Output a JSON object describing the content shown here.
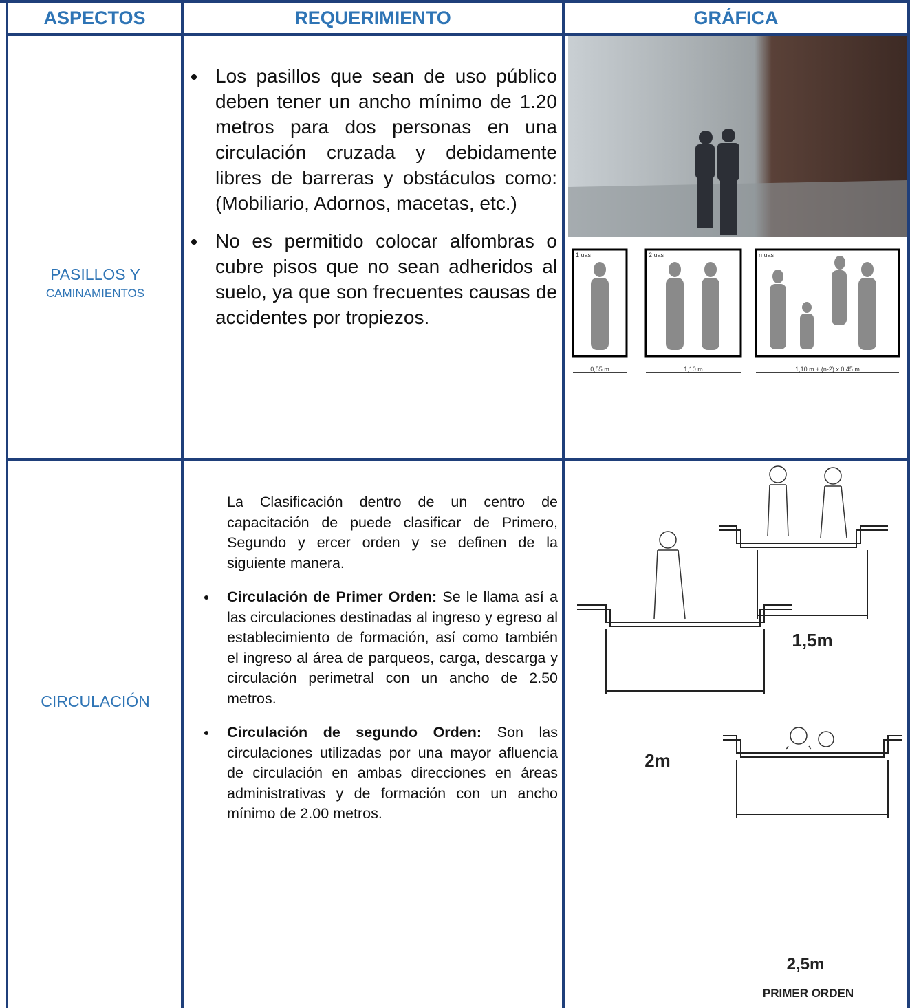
{
  "table": {
    "headers": [
      "ASPECTOS",
      "REQUERIMIENTO",
      "GRÁFICA"
    ],
    "rows": [
      {
        "aspect": [
          "PASILLOS Y",
          "CAMINAMIENTOS"
        ],
        "bullets": [
          "Los pasillos que sean de uso público  deben tener un ancho mínimo de 1.20 metros para dos personas en una circulación cruzada y debidamente libres de barreras y obstáculos como: (Mobiliario, Adornos, macetas, etc.)",
          "No es permitido colocar alfombras o cubre pisos que no sean adheridos al suelo, ya que son frecuentes causas de accidentes por tropiezos."
        ],
        "graphic_labels": [
          "1 uas",
          "2 uas",
          "n uas",
          "0,55 m",
          "1,10 m",
          "1,10 m + (n-2) x 0,45 m"
        ]
      },
      {
        "aspect": [
          "CIRCULACIÓN"
        ],
        "intro": "La Clasificación dentro de un centro de capacitación  de puede clasificar de Primero, Segundo y ercer orden y se definen de la siguiente manera.",
        "bullets": [
          {
            "bold": "Circulación de Primer Orden:",
            "text": " Se le llama así a las circulaciones destinadas  al ingreso y egreso al establecimiento  de formación, así como también el ingreso  al área de parqueos, carga, descarga y circulación perimetral con un ancho de 2.50 metros."
          },
          {
            "bold": "Circulación de segundo Orden:",
            "text": " Son las circulaciones utilizadas por una mayor afluencia de circulación en ambas direcciones en áreas administrativas y de formación con un ancho mínimo de 2.00 metros."
          }
        ],
        "graphic_labels": [
          "1,5m",
          "2m",
          "2,5m",
          "PRIMER ORDEN"
        ]
      }
    ]
  }
}
